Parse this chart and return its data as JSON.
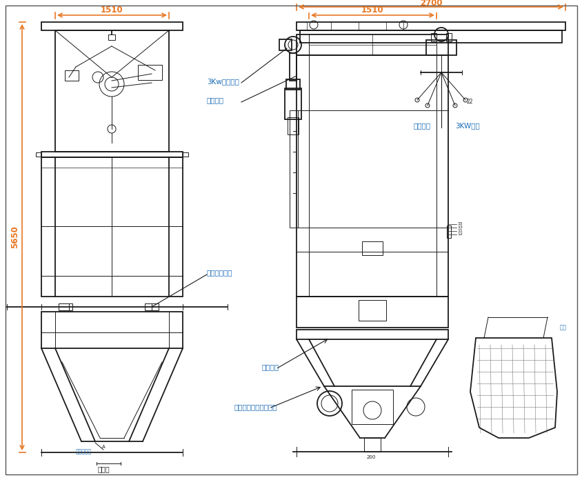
{
  "bg_color": "#ffffff",
  "line_color": "#1a1a1a",
  "dim_color": "#E87722",
  "label_color": "#1a6bb5",
  "annotations": {
    "fan_label": "3Kw离心风机",
    "dust_label": "除尘系统",
    "bag_beat_label": "吨袋拍打装置",
    "feeding_label": "投料格栅",
    "manual_label": "手动解袋装置及观察口",
    "hoist_label": "起吊系统",
    "motor_label": "3KW电机",
    "vibrate_label": "仓壁振动器",
    "bag_label": "吨袋",
    "dim22": "22",
    "dim_left_width": "1510",
    "dim_right_width": "2700",
    "dim_right_inner": "1510",
    "dim_height": "5650",
    "dim_front": "正视图",
    "dim_200": "200"
  }
}
